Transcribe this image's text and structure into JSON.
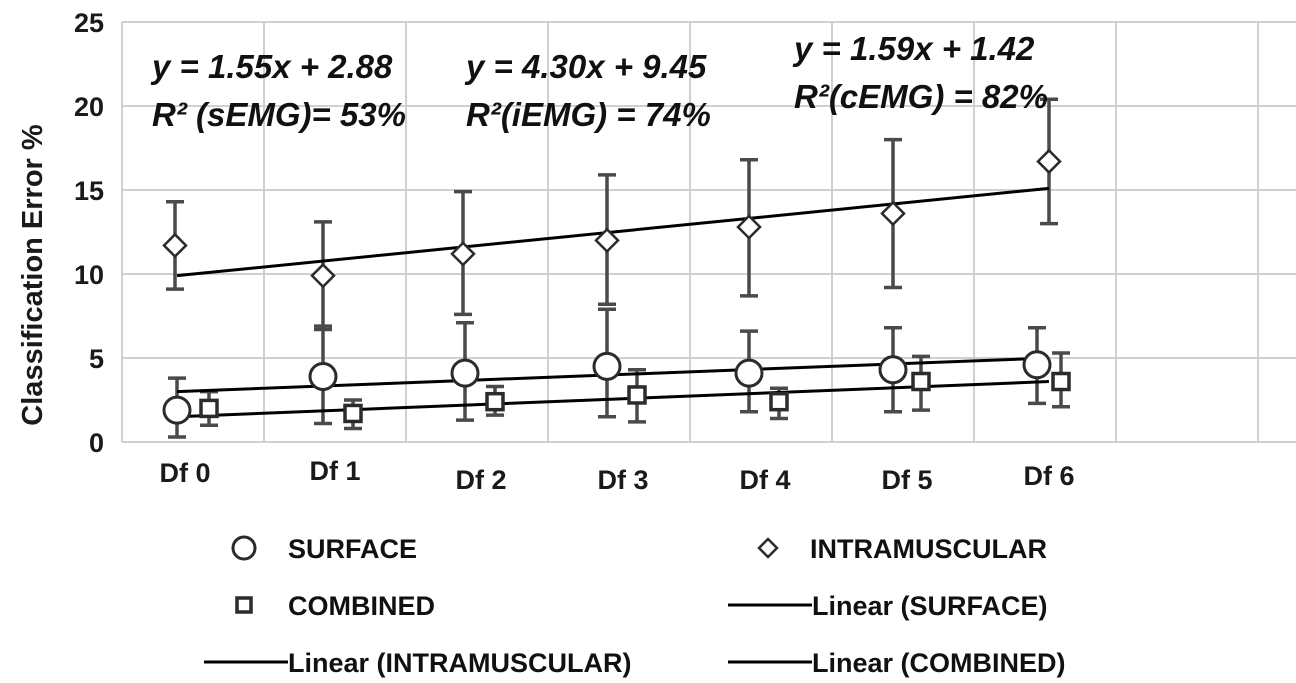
{
  "chart_data": {
    "type": "scatter",
    "title": "",
    "xlabel": "",
    "ylabel": "Classification Error %",
    "ylim": [
      0,
      25
    ],
    "yticks": [
      "0",
      "5",
      "10",
      "15",
      "20",
      "25"
    ],
    "categories": [
      "Df 0",
      "Df 1",
      "Df 2",
      "Df 3",
      "Df 4",
      "Df 5",
      "Df 6"
    ],
    "grid": true,
    "series": [
      {
        "name": "SURFACE",
        "marker": "circle",
        "values": [
          1.9,
          3.9,
          4.1,
          4.5,
          4.1,
          4.3,
          4.6
        ],
        "error_low": [
          0.3,
          1.1,
          1.3,
          1.5,
          1.8,
          1.8,
          2.3
        ],
        "error_high": [
          3.8,
          6.9,
          7.1,
          7.9,
          6.6,
          6.8,
          6.8
        ]
      },
      {
        "name": "INTRAMUSCULAR",
        "marker": "diamond",
        "values": [
          11.7,
          9.9,
          11.2,
          12.0,
          12.8,
          13.6,
          16.7
        ],
        "error_low": [
          9.1,
          6.7,
          7.6,
          8.2,
          8.7,
          9.2,
          13.0
        ],
        "error_high": [
          14.3,
          13.1,
          14.9,
          15.9,
          16.8,
          18.0,
          20.4
        ]
      },
      {
        "name": "COMBINED",
        "marker": "square",
        "values": [
          2.0,
          1.7,
          2.4,
          2.8,
          2.4,
          3.6,
          3.6
        ],
        "error_low": [
          1.0,
          0.8,
          1.6,
          1.2,
          1.4,
          1.9,
          2.1
        ],
        "error_high": [
          3.0,
          2.5,
          3.3,
          4.3,
          3.2,
          5.1,
          5.3
        ]
      }
    ],
    "trendlines": [
      {
        "name": "Linear (SURFACE)",
        "of": "SURFACE",
        "y_start": 3.0,
        "y_end": 5.0
      },
      {
        "name": "Linear (INTRAMUSCULAR)",
        "of": "INTRAMUSCULAR",
        "y_start": 9.9,
        "y_end": 15.1
      },
      {
        "name": "Linear (COMBINED)",
        "of": "COMBINED",
        "y_start": 1.5,
        "y_end": 3.6
      }
    ],
    "annotations": [
      {
        "line1": "y = 1.55x + 2.88",
        "line2": "R² (sEMG)= 53%"
      },
      {
        "line1": "y = 4.30x + 9.45",
        "line2": "R²(iEMG) = 74%"
      },
      {
        "line1": "y = 1.59x + 1.42",
        "line2": "R²(cEMG) = 82%"
      }
    ],
    "legend": {
      "placement": "bottom",
      "entries": [
        "SURFACE",
        "INTRAMUSCULAR",
        "COMBINED",
        "Linear (SURFACE)",
        "Linear (INTRAMUSCULAR)",
        "Linear (COMBINED)"
      ]
    },
    "colors": {
      "marker": "#2b2b2b",
      "error_bar": "#4a4a4a",
      "trend": "#000000",
      "grid": "#d0d0d0"
    }
  }
}
